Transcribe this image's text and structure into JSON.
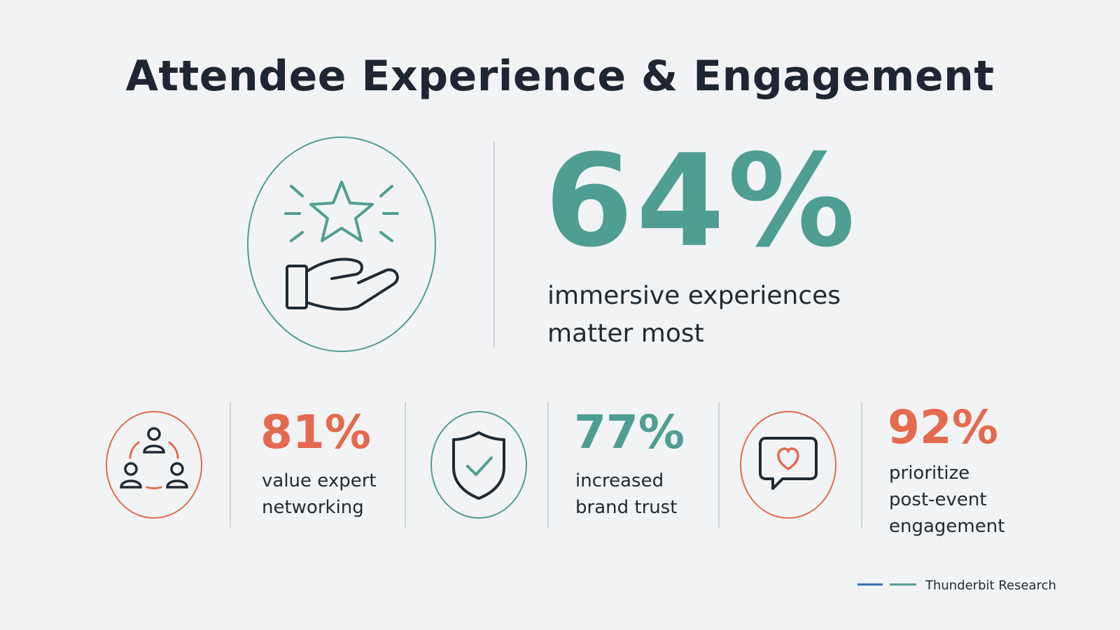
{
  "title": "Attendee Experience & Engagement",
  "hero": {
    "value": "64%",
    "label_line1": "immersive experiences",
    "label_line2": "matter most",
    "icon": "star-hand-icon",
    "color": "#4f9e92"
  },
  "stats": [
    {
      "value": "81%",
      "label_lines": [
        "value expert",
        "networking"
      ],
      "icon": "people-network-icon",
      "color": "#e46a4f"
    },
    {
      "value": "77%",
      "label_lines": [
        "increased",
        "brand trust"
      ],
      "icon": "shield-check-icon",
      "color": "#4f9e92"
    },
    {
      "value": "92%",
      "label_lines": [
        "prioritize",
        "post-event",
        "engagement"
      ],
      "icon": "chat-heart-icon",
      "color": "#e46a4f"
    }
  ],
  "footer": {
    "source": "Thunderbit Research",
    "line_colors": [
      "#2f6fb3",
      "#4f9e92"
    ]
  }
}
